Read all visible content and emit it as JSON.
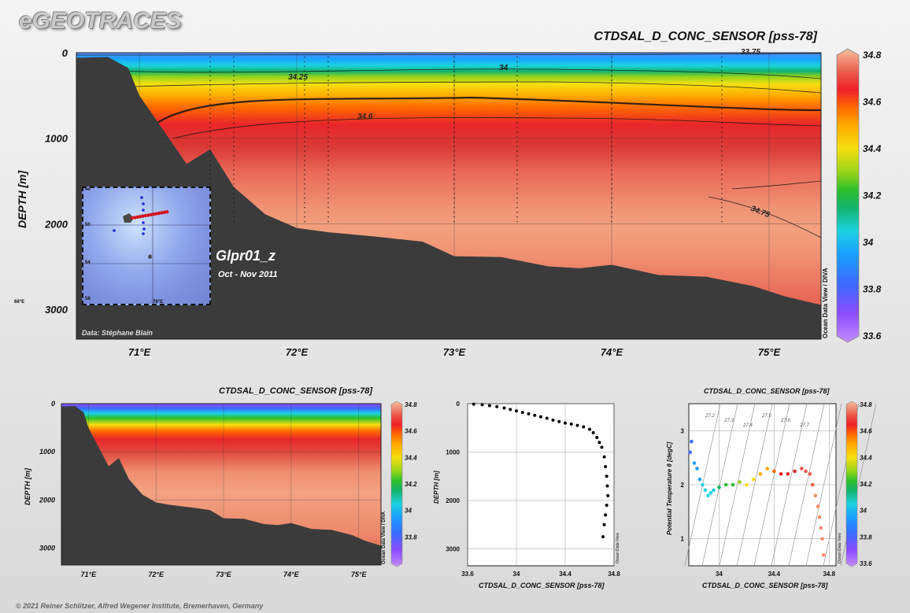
{
  "brand": "eGEOTRACES",
  "footer": "© 2021 Reiner Schlitzer, Alfred Wegener Institute, Bremerhaven, Germany",
  "colors": {
    "land": "#3b3b3b",
    "palette": [
      "#b98cff",
      "#7c4dff",
      "#3b6bff",
      "#1aa0ff",
      "#1bd3e0",
      "#12b36b",
      "#2fc02a",
      "#9ad41a",
      "#f5df10",
      "#ffaa00",
      "#ff6a00",
      "#f0202a",
      "#d92a2a",
      "#ea5a4a",
      "#f08c6a",
      "#f6b090"
    ]
  },
  "main": {
    "title": "CTDSAL_D_CONC_SENSOR [pss-78]",
    "ylabel": "DEPTH [m]",
    "section_name": "Glpr01_z",
    "period": "Oct - Nov 2011",
    "data_credit": "Data: Stéphane Blain",
    "side_credit": "Ocean Data View / DIVA",
    "contour_labels": [
      "33.75",
      "34.25",
      "34",
      "34.6",
      "34.75"
    ],
    "inset_lat_labels": [
      "46",
      "50",
      "54",
      "58"
    ],
    "inset_lon_labels": [
      "68°E",
      "76°E"
    ]
  },
  "section_small": {
    "title": "CTDSAL_D_CONC_SENSOR [pss-78]",
    "ylabel": "DEPTH [m]",
    "side_credit": "Ocean Data View / DIVA"
  },
  "profile": {
    "xlabel": "CTDSAL_D_CONC_SENSOR [pss-78]",
    "ylabel": "DEPTH [m]",
    "side_credit": "Ocean Data View"
  },
  "ts": {
    "title": "CTDSAL_D_CONC_SENSOR [pss-78]",
    "xlabel": "CTDSAL_D_CONC_SENSOR [pss-78]",
    "ylabel": "Potential Temperature θ [degC]",
    "side_credit": "Ocean Data View",
    "sigma_labels": [
      "27.2",
      "27.3",
      "27.4",
      "27.5",
      "27.6",
      "27.7"
    ]
  },
  "chart_data": [
    {
      "type": "heatmap",
      "name": "main-section",
      "title": "CTDSAL_D_CONC_SENSOR [pss-78]",
      "xlabel": "",
      "ylabel": "DEPTH [m]",
      "x_ticks": [
        "71°E",
        "72°E",
        "73°E",
        "74°E",
        "75°E"
      ],
      "x_tick_values": [
        71,
        72,
        73,
        74,
        75
      ],
      "xlim": [
        70.6,
        75.33
      ],
      "y_ticks": [
        "0",
        "1000",
        "2000",
        "3000"
      ],
      "y_tick_values": [
        0,
        1000,
        2000,
        3000
      ],
      "ylim": [
        0,
        3350
      ],
      "colorbar_ticks": [
        "34.8",
        "34.6",
        "34.4",
        "34.2",
        "34",
        "33.8",
        "33.6"
      ],
      "colorbar_range": [
        33.6,
        34.8
      ],
      "layers": [
        {
          "depth_top": 0,
          "depth_bottom": 150,
          "value": 33.9
        },
        {
          "depth_top": 150,
          "depth_bottom": 300,
          "value": 34.1
        },
        {
          "depth_top": 300,
          "depth_bottom": 500,
          "value": 34.35
        },
        {
          "depth_top": 500,
          "depth_bottom": 800,
          "value": 34.6
        },
        {
          "depth_top": 800,
          "depth_bottom": 1200,
          "value": 34.68
        },
        {
          "depth_top": 1200,
          "depth_bottom": 3350,
          "value": 34.74
        }
      ],
      "bathymetry": {
        "lon": [
          70.6,
          70.8,
          70.93,
          71.0,
          71.15,
          71.3,
          71.45,
          71.6,
          71.8,
          72.0,
          72.2,
          72.5,
          72.8,
          73.0,
          73.3,
          73.6,
          73.8,
          74.0,
          74.3,
          74.6,
          74.9,
          75.1,
          75.33
        ],
        "depth": [
          60,
          50,
          180,
          500,
          900,
          1300,
          1130,
          1570,
          1890,
          2050,
          2100,
          2150,
          2210,
          2380,
          2390,
          2500,
          2520,
          2480,
          2600,
          2620,
          2730,
          2850,
          2950
        ]
      }
    },
    {
      "type": "heatmap",
      "name": "small-section",
      "title": "CTDSAL_D_CONC_SENSOR [pss-78]",
      "ylabel": "DEPTH [m]",
      "x_ticks": [
        "71°E",
        "72°E",
        "73°E",
        "74°E",
        "75°E"
      ],
      "x_tick_values": [
        71,
        72,
        73,
        74,
        75
      ],
      "xlim": [
        70.6,
        75.33
      ],
      "y_ticks": [
        "0",
        "1000",
        "2000",
        "3000"
      ],
      "y_tick_values": [
        0,
        1000,
        2000,
        3000
      ],
      "ylim": [
        0,
        3350
      ],
      "colorbar_ticks": [
        "34.8",
        "34.6",
        "34.4",
        "34.2",
        "34",
        "33.8"
      ],
      "colorbar_range": [
        33.6,
        34.8
      ]
    },
    {
      "type": "scatter",
      "name": "profile",
      "xlabel": "CTDSAL_D_CONC_SENSOR [pss-78]",
      "ylabel": "DEPTH [m]",
      "xlim": [
        33.6,
        34.8
      ],
      "ylim": [
        0,
        3350
      ],
      "x_ticks": [
        "33.6",
        "34",
        "34.4",
        "34.8"
      ],
      "x_tick_values": [
        33.6,
        34.0,
        34.4,
        34.8
      ],
      "y_ticks": [
        "0",
        "1000",
        "2000",
        "3000"
      ],
      "y_tick_values": [
        0,
        1000,
        2000,
        3000
      ],
      "x": [
        33.65,
        33.72,
        33.78,
        33.84,
        33.9,
        33.95,
        34.0,
        34.05,
        34.1,
        34.15,
        34.2,
        34.25,
        34.3,
        34.35,
        34.4,
        34.45,
        34.5,
        34.55,
        34.6,
        34.63,
        34.66,
        34.68,
        34.7,
        34.72,
        34.73,
        34.74,
        34.745,
        34.75,
        34.74,
        34.73,
        34.72,
        34.71
      ],
      "y": [
        10,
        20,
        40,
        60,
        90,
        120,
        150,
        180,
        210,
        240,
        270,
        300,
        340,
        370,
        400,
        420,
        450,
        480,
        530,
        600,
        700,
        800,
        900,
        1100,
        1300,
        1500,
        1700,
        1900,
        2100,
        2300,
        2500,
        2750
      ]
    },
    {
      "type": "scatter",
      "name": "ts-diagram",
      "title": "CTDSAL_D_CONC_SENSOR [pss-78]",
      "xlabel": "CTDSAL_D_CONC_SENSOR [pss-78]",
      "ylabel": "Potential Temperature θ [degC]",
      "xlim": [
        33.78,
        34.85
      ],
      "ylim": [
        0.5,
        3.5
      ],
      "x_ticks": [
        "34",
        "34.4",
        "34.8"
      ],
      "x_tick_values": [
        34.0,
        34.4,
        34.8
      ],
      "y_ticks": [
        "1",
        "2",
        "3"
      ],
      "y_tick_values": [
        1,
        2,
        3
      ],
      "colorbar_ticks": [
        "34.8",
        "34.6",
        "34.4",
        "34.2",
        "34",
        "33.8",
        "33.6"
      ],
      "colorbar_range": [
        33.6,
        34.8
      ],
      "x": [
        33.79,
        33.8,
        33.82,
        33.84,
        33.86,
        33.88,
        33.9,
        33.92,
        33.94,
        33.96,
        34.0,
        34.05,
        34.1,
        34.15,
        34.2,
        34.25,
        34.3,
        34.35,
        34.4,
        34.45,
        34.5,
        34.55,
        34.6,
        34.63,
        34.66,
        34.68,
        34.7,
        34.72,
        34.73,
        34.74,
        34.75,
        34.76
      ],
      "y": [
        2.6,
        2.8,
        2.4,
        2.3,
        2.1,
        2.0,
        1.9,
        1.8,
        1.85,
        1.9,
        1.95,
        2.0,
        2.0,
        2.05,
        2.0,
        2.1,
        2.2,
        2.3,
        2.25,
        2.2,
        2.2,
        2.25,
        2.3,
        2.25,
        2.2,
        2.0,
        1.8,
        1.6,
        1.4,
        1.2,
        1.0,
        0.7
      ]
    }
  ]
}
